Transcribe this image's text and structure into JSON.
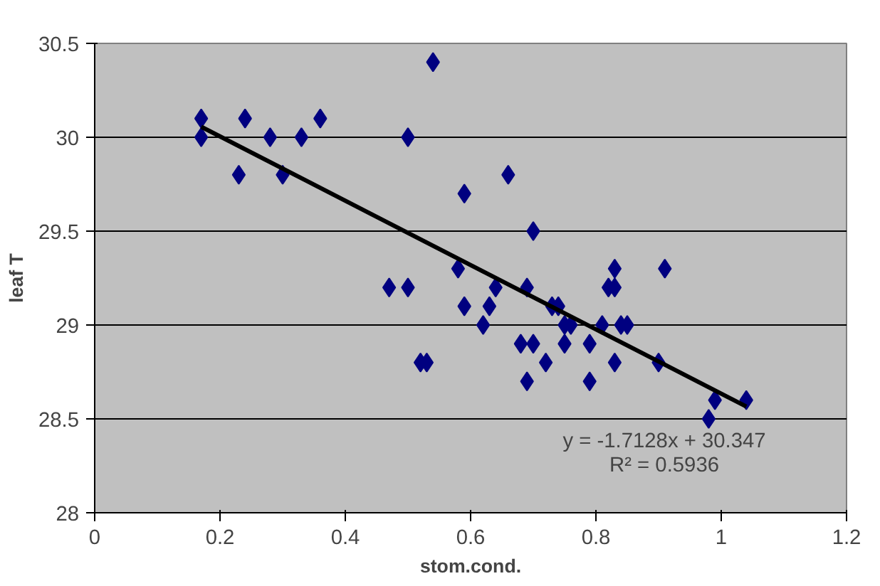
{
  "chart_data": {
    "type": "scatter",
    "xlabel": "stom.cond.",
    "ylabel": "leaf T",
    "xlim": [
      0,
      1.2
    ],
    "ylim": [
      28,
      30.5
    ],
    "xticks": [
      0,
      0.2,
      0.4,
      0.6,
      0.8,
      1,
      1.2
    ],
    "yticks": [
      28,
      28.5,
      29,
      29.5,
      30,
      30.5
    ],
    "grid": "y",
    "annotations": [
      "y = -1.7128x + 30.347",
      "R² = 0.5936"
    ],
    "series": [
      {
        "marker": "diamond",
        "color": "#000080",
        "x": [
          0.17,
          0.17,
          0.23,
          0.24,
          0.28,
          0.3,
          0.33,
          0.36,
          0.47,
          0.5,
          0.5,
          0.52,
          0.53,
          0.54,
          0.58,
          0.59,
          0.59,
          0.62,
          0.63,
          0.64,
          0.66,
          0.68,
          0.69,
          0.69,
          0.7,
          0.7,
          0.72,
          0.73,
          0.74,
          0.75,
          0.75,
          0.76,
          0.79,
          0.79,
          0.81,
          0.82,
          0.83,
          0.83,
          0.83,
          0.84,
          0.85,
          0.9,
          0.91,
          0.98,
          0.99,
          1.04
        ],
        "values": [
          30.1,
          30.0,
          29.8,
          30.1,
          30.0,
          29.8,
          30.0,
          30.1,
          29.2,
          29.2,
          30.0,
          28.8,
          28.8,
          30.4,
          29.3,
          29.7,
          29.1,
          29.0,
          29.1,
          29.2,
          29.8,
          28.9,
          28.7,
          29.2,
          29.5,
          28.9,
          28.8,
          29.1,
          29.1,
          28.9,
          29.0,
          29.0,
          28.9,
          28.7,
          29.0,
          29.2,
          29.3,
          29.2,
          28.8,
          29.0,
          29.0,
          28.8,
          29.3,
          28.5,
          28.6,
          28.6
        ]
      },
      {
        "type": "line",
        "color": "#000000",
        "line_style": "solid",
        "x": [
          0.17,
          1.04
        ],
        "values": [
          30.056,
          28.566
        ]
      }
    ]
  }
}
